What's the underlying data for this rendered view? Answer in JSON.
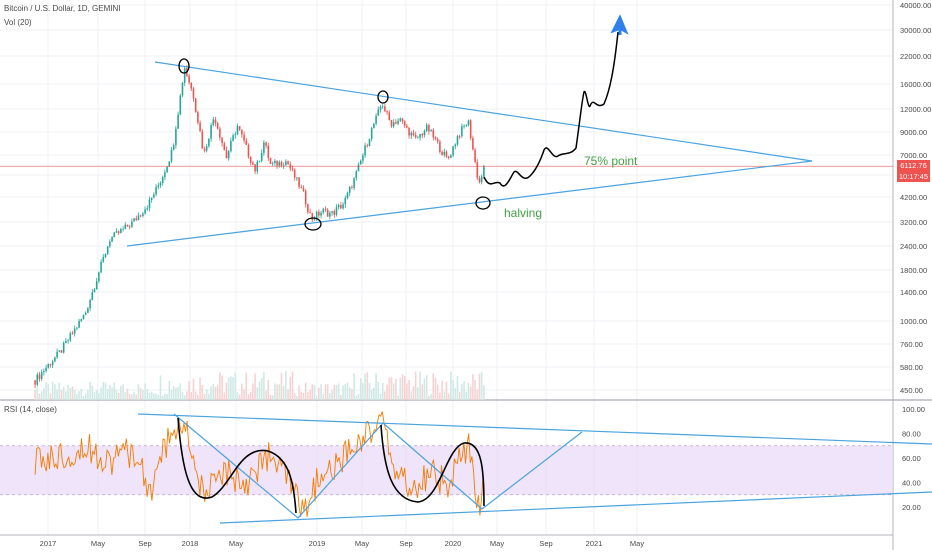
{
  "header": {
    "symbol_line": "Bitcoin / U.S. Dollar, 1D, GEMINI",
    "volume_label": "Vol (20)"
  },
  "rsi_panel": {
    "label": "RSI (14, close)"
  },
  "annotations": {
    "point_label": "75% point",
    "halving_label": "halving"
  },
  "price_tags": {
    "last_price": "6112.76",
    "countdown": "10:17:45"
  },
  "colors": {
    "trendline": "#4aa3df",
    "candle_up": "#26a69a",
    "candle_down": "#ef5350",
    "annotation_green": "#43a047",
    "rsi_line": "#f57c00",
    "rsi_band": "#e8d9f7",
    "arrow": "#2f80ed",
    "price_line": "#ef5350"
  },
  "chart_data": [
    {
      "type": "line",
      "scale": "log",
      "y_ticks": [
        450,
        580,
        760,
        1000,
        1400,
        1800,
        2400,
        3200,
        4200,
        5500,
        7000,
        9000,
        12000,
        16000,
        22000,
        30000,
        40000
      ],
      "y_tick_labels": [
        "450.00",
        "580.00",
        "760.00",
        "1000.00",
        "1400.00",
        "1800.00",
        "2400.00",
        "3200.00",
        "4200.00",
        "5500.00",
        "7000.00",
        "9000.00",
        "12000.00",
        "16000.00",
        "22000.00",
        "30000.00",
        "40000.00"
      ],
      "x_tick_labels": [
        "2017",
        "May",
        "Sep",
        "2018",
        "May",
        "2019",
        "May",
        "Sep",
        "2020",
        "May",
        "Sep",
        "2021",
        "May"
      ],
      "x_tick_dates": [
        "2017-01",
        "2017-05",
        "2017-09",
        "2018-01",
        "2018-05",
        "2019-01",
        "2019-05",
        "2019-09",
        "2020-01",
        "2020-05",
        "2020-09",
        "2021-01",
        "2021-05"
      ],
      "series": [
        {
          "x": [
            "2016-12-01",
            "2017-02-01",
            "2017-04-01",
            "2017-06-01",
            "2017-08-01",
            "2017-09-15",
            "2017-10-15",
            "2017-11-15",
            "2017-12-17",
            "2018-01-10",
            "2018-02-06",
            "2018-03-05",
            "2018-04-06",
            "2018-05-05",
            "2018-06-29",
            "2018-07-25",
            "2018-08-14",
            "2018-10-01",
            "2018-11-20",
            "2018-12-15",
            "2019-01-15",
            "2019-02-10",
            "2019-03-15",
            "2019-04-10",
            "2019-05-15",
            "2019-06-26",
            "2019-07-20",
            "2019-08-15",
            "2019-09-25",
            "2019-10-26",
            "2019-12-18",
            "2020-01-15",
            "2020-02-12",
            "2020-03-12",
            "2020-03-28"
          ],
          "y": [
            500,
            700,
            1100,
            2600,
            3200,
            4000,
            5200,
            7500,
            19500,
            14000,
            7000,
            11000,
            6800,
            9700,
            5800,
            8100,
            6200,
            6500,
            4400,
            3300,
            3600,
            3500,
            3950,
            5200,
            8000,
            12900,
            10000,
            10500,
            8200,
            9500,
            6600,
            8700,
            10300,
            4900,
            6112.76
          ]
        }
      ],
      "volume": {
        "name": "Vol (20)"
      },
      "legend": "none",
      "grid": "on",
      "last_price": 6112.76,
      "annotations": [
        "75% point",
        "halving"
      ]
    },
    {
      "type": "line",
      "ylim": [
        10,
        100
      ],
      "y_ticks": [
        20,
        40,
        60,
        80,
        100
      ],
      "y_tick_labels": [
        "20.00",
        "40.00",
        "60.00",
        "80.00",
        "100.00"
      ],
      "band": [
        30,
        70
      ],
      "series": [
        {
          "x": [
            "2016-12-01",
            "2017-02-01",
            "2017-04-01",
            "2017-06-01",
            "2017-08-01",
            "2017-09-15",
            "2017-11-01",
            "2017-12-17",
            "2018-02-06",
            "2018-04-01",
            "2018-06-01",
            "2018-08-01",
            "2018-10-01",
            "2018-11-20",
            "2019-01-01",
            "2019-03-01",
            "2019-05-01",
            "2019-06-26",
            "2019-08-01",
            "2019-09-25",
            "2019-11-01",
            "2019-12-18",
            "2020-02-12",
            "2020-03-12",
            "2020-03-28"
          ],
          "y": [
            55,
            62,
            70,
            58,
            66,
            32,
            75,
            88,
            28,
            48,
            40,
            62,
            45,
            12,
            40,
            55,
            78,
            90,
            50,
            32,
            50,
            38,
            70,
            18,
            40
          ]
        }
      ],
      "legend": "none",
      "grid": "on"
    }
  ]
}
